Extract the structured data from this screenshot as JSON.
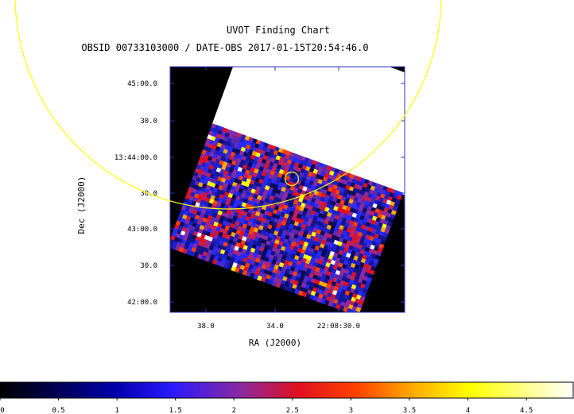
{
  "chart_data": {
    "type": "heatmap",
    "title": "UVOT Finding Chart",
    "subtitle": "OBSID 00733103000 / DATE-OBS 2017-01-15T20:54:46.0",
    "xlabel": "RA (J2000)",
    "ylabel": "Dec (J2000)",
    "x_ticks": [
      "38.0",
      "34.0",
      "22:08:30.0"
    ],
    "y_ticks": [
      "45:00.0",
      "30.0",
      "13:44:00.0",
      "30.0",
      "43:00.0",
      "30.0",
      "42:00.0"
    ],
    "colorbar": {
      "ticks": [
        0,
        0.5,
        1,
        1.5,
        2,
        2.5,
        3,
        3.5,
        4,
        4.5
      ],
      "range": [
        0,
        4.9
      ],
      "colormap": "black-blue-purple-red-orange-yellow-white"
    },
    "overlays": [
      "large yellow circle",
      "small yellow circle"
    ],
    "colors": {
      "frame": "#3333cc",
      "circle": "#ffff00",
      "background": "#000000",
      "saturated": "#ffffff"
    }
  }
}
